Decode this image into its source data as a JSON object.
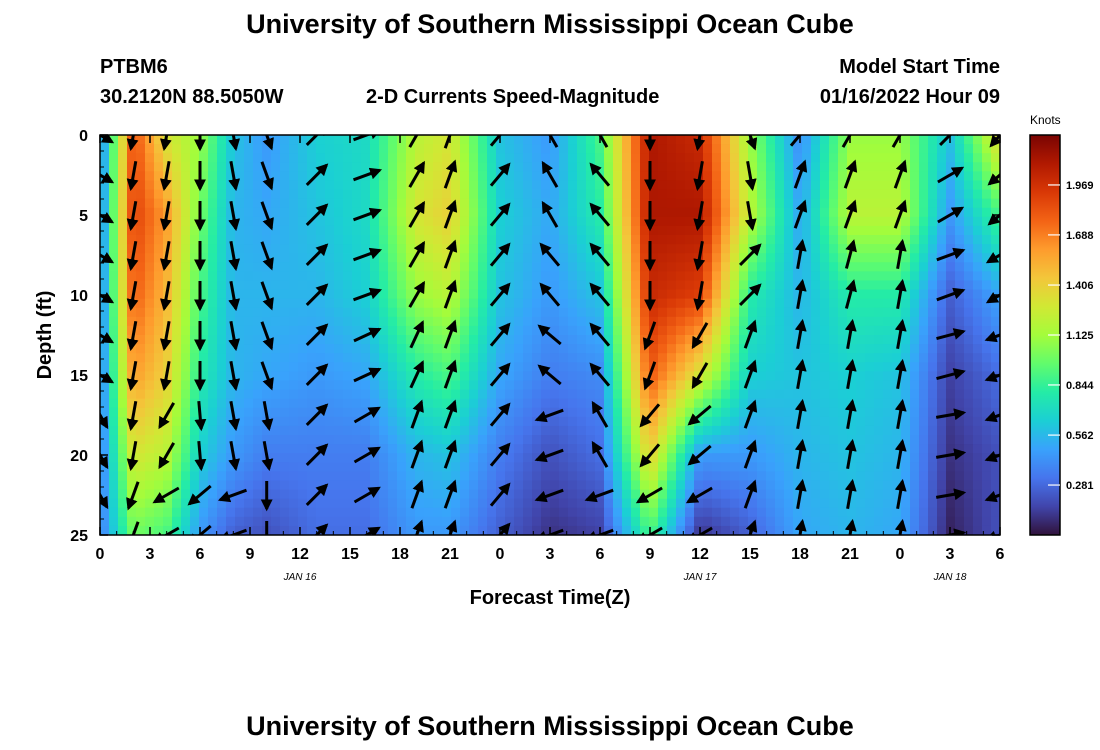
{
  "title": "University of Southern Mississippi Ocean Cube",
  "footer_title": "University of Southern Mississippi Ocean Cube",
  "station": {
    "id": "PTBM6",
    "coords": "30.2120N  88.5050W"
  },
  "model_start": {
    "label": "Model Start Time",
    "value": "01/16/2022 Hour 09"
  },
  "chart_data": {
    "type": "heatmap",
    "title": "2-D Currents Speed-Magnitude",
    "xlabel": "Forecast Time(Z)",
    "ylabel": "Depth (ft)",
    "x_tick_labels": [
      "0",
      "3",
      "6",
      "9",
      "12",
      "15",
      "18",
      "21",
      "0",
      "3",
      "6",
      "9",
      "12",
      "15",
      "18",
      "21",
      "0",
      "3",
      "6"
    ],
    "x_range_hours": [
      0,
      54
    ],
    "date_labels": [
      {
        "label": "JAN 16",
        "hour": 12
      },
      {
        "label": "JAN 17",
        "hour": 36
      },
      {
        "label": "JAN 18",
        "hour": 51
      }
    ],
    "y_tick_labels": [
      "0",
      "5",
      "10",
      "15",
      "20",
      "25"
    ],
    "ylim": [
      0,
      25
    ],
    "y_inverted": true,
    "colorbar": {
      "unit": "Knots",
      "ticks": [
        "1.969",
        "1.688",
        "1.406",
        "1.125",
        "0.844",
        "0.562",
        "0.281"
      ],
      "tick_values": [
        1.969,
        1.688,
        1.406,
        1.125,
        0.844,
        0.562,
        0.281
      ],
      "range": [
        0,
        2.25
      ],
      "colormap": [
        "#30123b",
        "#4145ab",
        "#4675ed",
        "#39a2fc",
        "#1bcfd4",
        "#24eca6",
        "#61fc6c",
        "#a4fc3b",
        "#d1e834",
        "#f3c63a",
        "#fe9b2d",
        "#f36315",
        "#d93806",
        "#b11901",
        "#7a0402"
      ]
    },
    "profiles": [
      {
        "hour": 0,
        "speed": [
          0.35,
          0.35,
          0.35,
          0.35,
          0.35,
          0.35
        ],
        "dir": [
          120,
          120,
          120,
          120,
          150,
          150
        ]
      },
      {
        "hour": 2,
        "speed": [
          1.85,
          1.9,
          1.8,
          1.6,
          1.3,
          1.0
        ],
        "dir": [
          190,
          190,
          190,
          190,
          190,
          200
        ]
      },
      {
        "hour": 4,
        "speed": [
          1.3,
          1.6,
          1.5,
          1.4,
          1.2,
          0.9
        ],
        "dir": [
          190,
          190,
          190,
          190,
          210,
          240
        ]
      },
      {
        "hour": 6,
        "speed": [
          1.1,
          1.0,
          0.9,
          0.8,
          0.65,
          0.45
        ],
        "dir": [
          180,
          180,
          180,
          180,
          175,
          230
        ]
      },
      {
        "hour": 8,
        "speed": [
          0.6,
          0.55,
          0.55,
          0.55,
          0.45,
          0.25
        ],
        "dir": [
          170,
          170,
          170,
          170,
          170,
          250
        ]
      },
      {
        "hour": 10,
        "speed": [
          0.45,
          0.5,
          0.55,
          0.5,
          0.35,
          0.2
        ],
        "dir": [
          160,
          160,
          160,
          160,
          170,
          180
        ]
      },
      {
        "hour": 13,
        "speed": [
          0.65,
          0.6,
          0.55,
          0.45,
          0.35,
          0.3
        ],
        "dir": [
          45,
          45,
          45,
          45,
          45,
          45
        ]
      },
      {
        "hour": 16,
        "speed": [
          0.7,
          0.7,
          0.65,
          0.5,
          0.35,
          0.3
        ],
        "dir": [
          70,
          70,
          70,
          65,
          60,
          60
        ]
      },
      {
        "hour": 19,
        "speed": [
          1.2,
          1.3,
          1.1,
          0.8,
          0.55,
          0.45
        ],
        "dir": [
          30,
          30,
          30,
          25,
          20,
          20
        ]
      },
      {
        "hour": 21,
        "speed": [
          1.3,
          1.4,
          1.2,
          0.9,
          0.6,
          0.45
        ],
        "dir": [
          20,
          20,
          20,
          20,
          20,
          20
        ]
      },
      {
        "hour": 24,
        "speed": [
          0.6,
          0.65,
          0.6,
          0.5,
          0.35,
          0.25
        ],
        "dir": [
          40,
          40,
          40,
          40,
          40,
          40
        ]
      },
      {
        "hour": 27,
        "speed": [
          0.45,
          0.5,
          0.45,
          0.35,
          0.2,
          0.1
        ],
        "dir": [
          330,
          330,
          320,
          310,
          250,
          250
        ]
      },
      {
        "hour": 30,
        "speed": [
          0.9,
          0.8,
          0.6,
          0.4,
          0.3,
          0.15
        ],
        "dir": [
          330,
          320,
          320,
          320,
          330,
          250
        ]
      },
      {
        "hour": 33,
        "speed": [
          2.1,
          2.1,
          2.0,
          1.8,
          1.4,
          0.9
        ],
        "dir": [
          180,
          180,
          180,
          200,
          220,
          240
        ]
      },
      {
        "hour": 36,
        "speed": [
          2.0,
          2.1,
          1.9,
          1.3,
          0.45,
          0.1
        ],
        "dir": [
          190,
          190,
          190,
          210,
          230,
          240
        ]
      },
      {
        "hour": 39,
        "speed": [
          1.1,
          1.2,
          0.8,
          0.65,
          0.45,
          0.25
        ],
        "dir": [
          160,
          170,
          45,
          20,
          20,
          20
        ]
      },
      {
        "hour": 42,
        "speed": [
          0.4,
          0.5,
          0.55,
          0.6,
          0.55,
          0.5
        ],
        "dir": [
          40,
          20,
          10,
          10,
          10,
          10
        ]
      },
      {
        "hour": 45,
        "speed": [
          1.1,
          1.2,
          0.8,
          0.65,
          0.6,
          0.55
        ],
        "dir": [
          30,
          20,
          15,
          10,
          10,
          10
        ]
      },
      {
        "hour": 48,
        "speed": [
          1.1,
          1.2,
          0.8,
          0.6,
          0.55,
          0.5
        ],
        "dir": [
          30,
          20,
          10,
          10,
          10,
          10
        ]
      },
      {
        "hour": 51,
        "speed": [
          0.6,
          0.45,
          0.25,
          0.15,
          0.1,
          0.05
        ],
        "dir": [
          45,
          60,
          70,
          75,
          80,
          80
        ]
      },
      {
        "hour": 54,
        "speed": [
          1.4,
          0.9,
          0.5,
          0.3,
          0.2,
          0.2
        ],
        "dir": [
          220,
          230,
          240,
          250,
          250,
          250
        ]
      }
    ]
  }
}
